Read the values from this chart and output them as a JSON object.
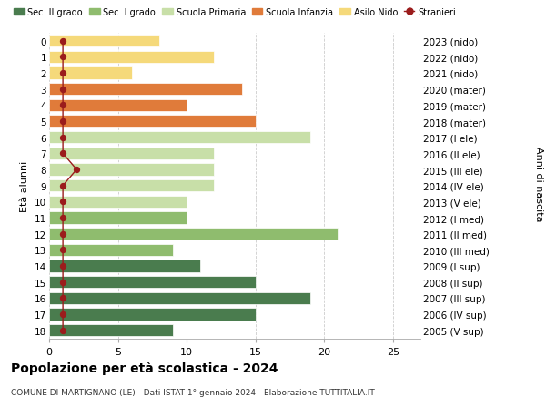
{
  "ages": [
    18,
    17,
    16,
    15,
    14,
    13,
    12,
    11,
    10,
    9,
    8,
    7,
    6,
    5,
    4,
    3,
    2,
    1,
    0
  ],
  "right_labels": [
    "2005 (V sup)",
    "2006 (IV sup)",
    "2007 (III sup)",
    "2008 (II sup)",
    "2009 (I sup)",
    "2010 (III med)",
    "2011 (II med)",
    "2012 (I med)",
    "2013 (V ele)",
    "2014 (IV ele)",
    "2015 (III ele)",
    "2016 (II ele)",
    "2017 (I ele)",
    "2018 (mater)",
    "2019 (mater)",
    "2020 (mater)",
    "2021 (nido)",
    "2022 (nido)",
    "2023 (nido)"
  ],
  "bar_values": [
    9,
    15,
    19,
    15,
    11,
    9,
    21,
    10,
    10,
    12,
    12,
    12,
    19,
    15,
    10,
    14,
    6,
    12,
    8
  ],
  "bar_colors": [
    "#4a7c4e",
    "#4a7c4e",
    "#4a7c4e",
    "#4a7c4e",
    "#4a7c4e",
    "#8fbc6e",
    "#8fbc6e",
    "#8fbc6e",
    "#c8dfa8",
    "#c8dfa8",
    "#c8dfa8",
    "#c8dfa8",
    "#c8dfa8",
    "#e07b3a",
    "#e07b3a",
    "#e07b3a",
    "#f5d97a",
    "#f5d97a",
    "#f5d97a"
  ],
  "stranieri_values": [
    1,
    1,
    1,
    1,
    1,
    1,
    1,
    1,
    1,
    1,
    2,
    1,
    1,
    1,
    1,
    1,
    1,
    1,
    1
  ],
  "stranieri_color": "#9b1c1c",
  "legend_labels": [
    "Sec. II grado",
    "Sec. I grado",
    "Scuola Primaria",
    "Scuola Infanzia",
    "Asilo Nido",
    "Stranieri"
  ],
  "legend_colors": [
    "#4a7c4e",
    "#8fbc6e",
    "#c8dfa8",
    "#e07b3a",
    "#f5d97a",
    "#9b1c1c"
  ],
  "title": "Popolazione per età scolastica - 2024",
  "subtitle": "COMUNE DI MARTIGNANO (LE) - Dati ISTAT 1° gennaio 2024 - Elaborazione TUTTITALIA.IT",
  "ylabel_left": "Età alunni",
  "ylabel_right": "Anni di nascita",
  "xlim": [
    0,
    27
  ],
  "xticks": [
    0,
    5,
    10,
    15,
    20,
    25
  ],
  "background_color": "#ffffff",
  "grid_color": "#cccccc"
}
